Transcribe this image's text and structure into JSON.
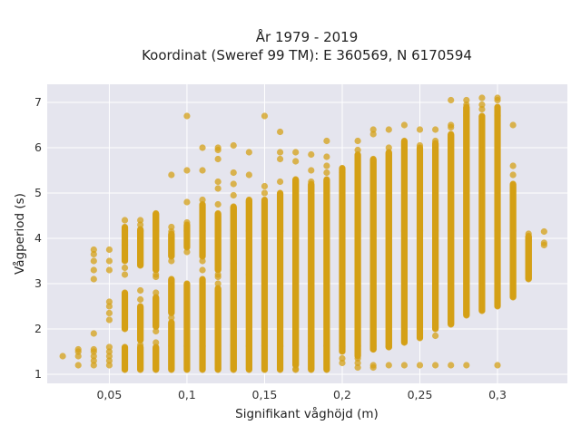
{
  "chart_data": {
    "type": "scatter",
    "title": "År 1979 - 2019",
    "subtitle": "Koordinat (Sweref 99 TM): E 360569, N 6170594",
    "xlabel": "Signifikant våghöjd (m)",
    "ylabel": "Vågperiod (s)",
    "xlim": [
      0.01,
      0.345
    ],
    "ylim": [
      0.8,
      7.4
    ],
    "x_ticks": [
      0.05,
      0.1,
      0.15,
      0.2,
      0.25,
      0.3
    ],
    "x_tick_labels": [
      "0,05",
      "0,1",
      "0,15",
      "0,2",
      "0,25",
      "0,3"
    ],
    "y_ticks": [
      1,
      2,
      3,
      4,
      5,
      6,
      7
    ],
    "y_tick_labels": [
      "1",
      "2",
      "3",
      "4",
      "5",
      "6",
      "7"
    ],
    "grid": true,
    "legend": "none",
    "colors": {
      "marker": "#D4A017",
      "plot_bg": "#E5E5EE",
      "grid": "#FFFFFF"
    },
    "series": [
      {
        "x_step": 0.01,
        "columns": [
          {
            "x": 0.02,
            "points": [
              1.4
            ]
          },
          {
            "x": 0.03,
            "points": [
              1.2,
              1.4,
              1.5,
              1.55
            ]
          },
          {
            "x": 0.04,
            "points": [
              1.2,
              1.3,
              1.4,
              1.5,
              1.55,
              1.9,
              3.1,
              3.3,
              3.5,
              3.65,
              3.75
            ]
          },
          {
            "x": 0.05,
            "points": [
              1.2,
              1.3,
              1.4,
              1.5,
              1.6,
              2.2,
              2.35,
              2.5,
              2.6,
              3.3,
              3.5,
              3.75
            ]
          },
          {
            "x": 0.06,
            "points": [
              3.2,
              3.35,
              4.4,
              3.85
            ],
            "segments": [
              [
                1.1,
                1.6
              ],
              [
                2.0,
                2.8
              ],
              [
                3.5,
                4.25
              ]
            ]
          },
          {
            "x": 0.07,
            "points": [
              1.65,
              2.65,
              2.85,
              4.3,
              4.4
            ],
            "segments": [
              [
                1.1,
                1.6
              ],
              [
                1.75,
                2.5
              ],
              [
                3.4,
                4.2
              ]
            ]
          },
          {
            "x": 0.08,
            "points": [
              1.7,
              1.95,
              2.8,
              3.2,
              3.15
            ],
            "segments": [
              [
                1.1,
                1.6
              ],
              [
                2.05,
                2.7
              ],
              [
                3.3,
                4.55
              ]
            ]
          },
          {
            "x": 0.09,
            "points": [
              2.25,
              3.5,
              4.15,
              4.25,
              5.4
            ],
            "segments": [
              [
                1.1,
                2.15
              ],
              [
                2.35,
                3.1
              ],
              [
                3.6,
                4.1
              ]
            ]
          },
          {
            "x": 0.1,
            "points": [
              4.8,
              4.35,
              6.7,
              5.5,
              3.7
            ],
            "segments": [
              [
                1.1,
                3.0
              ],
              [
                3.8,
                4.3
              ]
            ]
          },
          {
            "x": 0.11,
            "points": [
              3.3,
              3.5,
              5.5,
              6.0,
              4.85
            ],
            "segments": [
              [
                1.1,
                3.1
              ],
              [
                3.6,
                4.75
              ]
            ]
          },
          {
            "x": 0.12,
            "points": [
              5.75,
              5.95,
              6.0,
              3.2,
              3.15,
              3.0,
              4.75,
              5.1,
              5.25
            ],
            "segments": [
              [
                1.1,
                2.9
              ],
              [
                3.3,
                4.55
              ]
            ]
          },
          {
            "x": 0.13,
            "points": [
              3.3,
              3.45,
              5.2,
              5.45,
              6.05,
              4.95
            ],
            "segments": [
              [
                1.1,
                4.7
              ]
            ]
          },
          {
            "x": 0.14,
            "points": [
              5.4,
              5.9,
              3.2,
              4.8
            ],
            "segments": [
              [
                1.1,
                4.85
              ]
            ]
          },
          {
            "x": 0.15,
            "points": [
              5.0,
              5.15,
              6.7
            ],
            "segments": [
              [
                1.1,
                4.85
              ]
            ]
          },
          {
            "x": 0.16,
            "points": [
              5.25,
              5.9,
              5.75,
              6.35
            ],
            "segments": [
              [
                1.1,
                5.0
              ]
            ]
          },
          {
            "x": 0.17,
            "points": [
              5.9,
              5.7,
              1.12,
              1.1
            ],
            "segments": [
              [
                1.2,
                5.3
              ]
            ]
          },
          {
            "x": 0.18,
            "points": [
              5.85,
              5.5,
              5.25
            ],
            "segments": [
              [
                1.1,
                5.2
              ]
            ]
          },
          {
            "x": 0.19,
            "points": [
              6.15,
              5.8,
              5.6,
              5.45
            ],
            "segments": [
              [
                1.1,
                5.3
              ]
            ]
          },
          {
            "x": 0.2,
            "points": [
              5.45,
              1.25,
              1.35
            ],
            "segments": [
              [
                1.5,
                5.55
              ]
            ]
          },
          {
            "x": 0.21,
            "points": [
              6.15,
              5.95,
              1.15,
              1.25,
              1.35
            ],
            "segments": [
              [
                1.4,
                5.85
              ]
            ]
          },
          {
            "x": 0.22,
            "points": [
              6.4,
              6.3,
              1.15,
              1.2,
              1.55
            ],
            "segments": [
              [
                1.55,
                5.75
              ]
            ]
          },
          {
            "x": 0.23,
            "points": [
              6.4,
              6.0,
              1.2,
              1.6
            ],
            "segments": [
              [
                1.6,
                5.9
              ]
            ]
          },
          {
            "x": 0.24,
            "points": [
              6.5,
              1.2
            ],
            "segments": [
              [
                1.7,
                6.15
              ]
            ]
          },
          {
            "x": 0.25,
            "points": [
              6.4,
              6.05,
              1.2
            ],
            "segments": [
              [
                1.8,
                6.0
              ]
            ]
          },
          {
            "x": 0.26,
            "points": [
              6.4,
              6.15,
              1.2,
              1.85
            ],
            "segments": [
              [
                2.0,
                6.1
              ]
            ]
          },
          {
            "x": 0.27,
            "points": [
              7.05,
              6.5,
              6.45,
              1.2
            ],
            "segments": [
              [
                2.1,
                6.3
              ]
            ]
          },
          {
            "x": 0.28,
            "points": [
              7.05,
              6.95,
              1.2
            ],
            "segments": [
              [
                2.3,
                6.9
              ]
            ]
          },
          {
            "x": 0.29,
            "points": [
              7.1,
              6.95,
              6.85
            ],
            "segments": [
              [
                2.4,
                6.7
              ]
            ]
          },
          {
            "x": 0.3,
            "points": [
              7.1,
              7.05,
              1.2
            ],
            "segments": [
              [
                2.5,
                6.9
              ]
            ]
          },
          {
            "x": 0.31,
            "points": [
              6.5,
              5.6,
              5.4
            ],
            "segments": [
              [
                2.7,
                5.2
              ]
            ]
          },
          {
            "x": 0.32,
            "points": [
              4.1,
              3.95
            ],
            "segments": [
              [
                3.1,
                4.05
              ]
            ]
          },
          {
            "x": 0.33,
            "points": [
              4.15,
              3.85,
              3.9
            ]
          }
        ]
      }
    ]
  }
}
